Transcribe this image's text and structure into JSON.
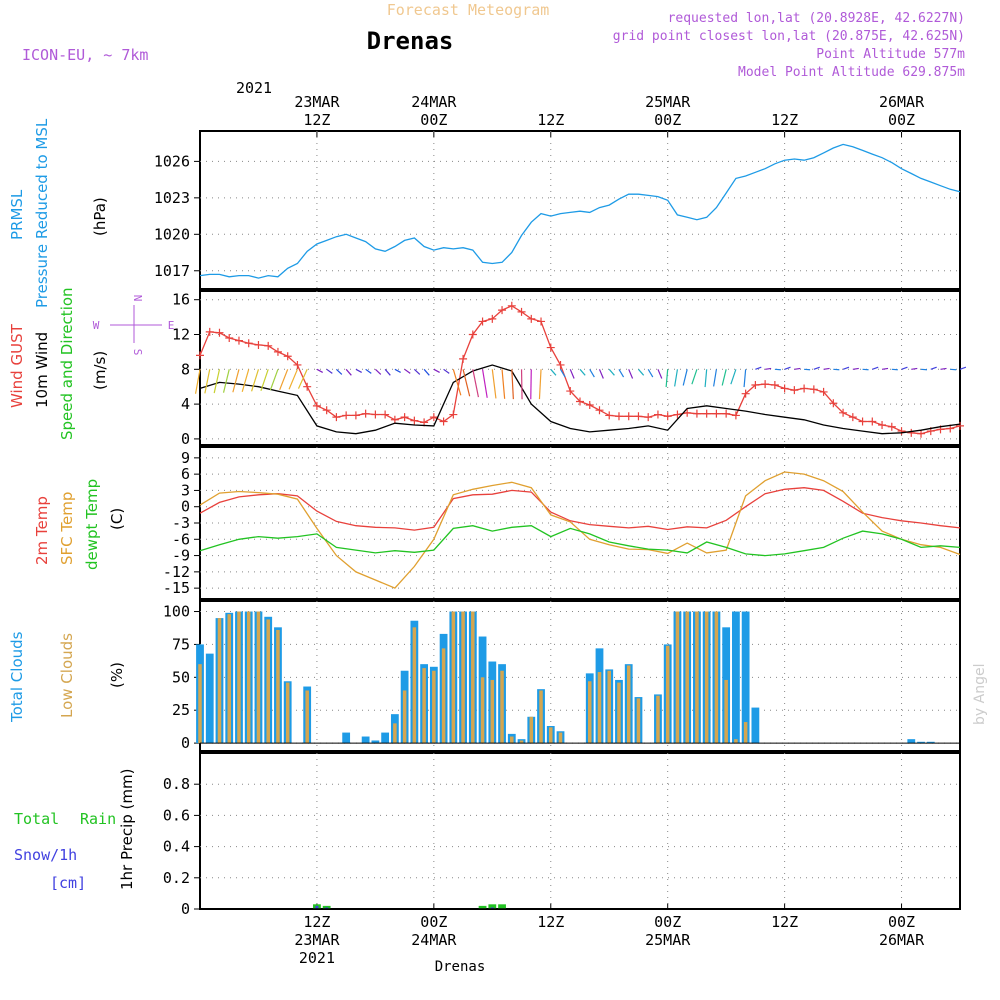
{
  "header": {
    "supertitle": "Forecast Meteogram",
    "location": "Drenas",
    "model": "ICON-EU, ~ 7km",
    "requested": "requested lon,lat (20.8928E, 42.6227N)",
    "gridpoint": "grid point closest lon,lat (20.875E, 42.625N)",
    "altitude": "Point Altitude 577m",
    "model_altitude": "Model Point Altitude 629.875m"
  },
  "footer": {
    "location": "Drenas",
    "credit": "by Angel"
  },
  "time_axis": {
    "top_year": "2021",
    "ticks": [
      {
        "h": 12,
        "top": [
          "23MAR",
          "12Z"
        ],
        "bottom": [
          "12Z",
          "23MAR",
          "2021"
        ]
      },
      {
        "h": 24,
        "top": [
          "24MAR",
          "00Z"
        ],
        "bottom": [
          "00Z",
          "24MAR"
        ]
      },
      {
        "h": 36,
        "top": [
          "12Z"
        ],
        "bottom": [
          "12Z"
        ]
      },
      {
        "h": 48,
        "top": [
          "25MAR",
          "00Z"
        ],
        "bottom": [
          "00Z",
          "25MAR"
        ]
      },
      {
        "h": 60,
        "top": [
          "12Z"
        ],
        "bottom": [
          "12Z"
        ]
      },
      {
        "h": 72,
        "top": [
          "26MAR",
          "00Z"
        ],
        "bottom": [
          "00Z",
          "26MAR"
        ]
      }
    ]
  },
  "panels": {
    "pressure": {
      "label1": "PRMSL",
      "label2": "Pressure Reduced to MSL",
      "unit": "(hPa)",
      "yticks": [
        1017,
        1020,
        1023,
        1026
      ]
    },
    "wind": {
      "label_gust": "Wind GUST",
      "label_wind": "10m Wind",
      "label_dir": "Speed and Direction",
      "unit": "(m/s)",
      "compass_n": "N",
      "compass_s": "S",
      "compass_w": "W",
      "compass_e": "E",
      "yticks": [
        0,
        4,
        8,
        12,
        16
      ]
    },
    "temp": {
      "label_2m": "2m Temp",
      "label_sfc": "SFC Temp",
      "label_dew": "dewpt Temp",
      "unit": "(C)",
      "yticks": [
        -15,
        -12,
        -9,
        -6,
        -3,
        0,
        3,
        6,
        9
      ]
    },
    "clouds": {
      "label_total": "Total Clouds",
      "label_low": "Low Clouds",
      "unit": "(%)",
      "yticks": [
        0,
        25,
        50,
        75,
        100
      ]
    },
    "precip": {
      "label_rain1": "Total",
      "label_rain2": "Rain",
      "label_snow": "Snow/1h",
      "label_cm": "[cm]",
      "unit": "1hr Precip (mm)",
      "yticks": [
        "0",
        "0.2",
        "0.4",
        "0.6",
        "0.8"
      ]
    }
  },
  "colors": {
    "pressure": "#1e9be6",
    "gust": "#e8413c",
    "wind": "#000000",
    "t2m": "#e8413c",
    "sfc": "#e0a030",
    "dew": "#22c322",
    "total_cloud": "#1e9be6",
    "low_cloud": "#d4a650",
    "rain": "#22c322",
    "snow": "#4040e0",
    "title": "#f0c890",
    "meta": "#b05ad8",
    "grid": "#888888"
  },
  "chart_data": {
    "type": "line",
    "x_unit": "hours since 2021-03-23 00Z",
    "x_range": [
      0,
      78
    ],
    "pressure": {
      "x": [
        0,
        1,
        2,
        3,
        4,
        5,
        6,
        7,
        8,
        9,
        10,
        11,
        12,
        13,
        14,
        15,
        16,
        17,
        18,
        19,
        20,
        21,
        22,
        23,
        24,
        25,
        26,
        27,
        28,
        29,
        30,
        31,
        32,
        33,
        34,
        35,
        36,
        37,
        38,
        39,
        40,
        41,
        42,
        43,
        44,
        45,
        46,
        47,
        48,
        49,
        50,
        51,
        52,
        53,
        54,
        55,
        56,
        57,
        58,
        59,
        60,
        61,
        62,
        63,
        64,
        65,
        66,
        67,
        68,
        69,
        70,
        71,
        72,
        73,
        74,
        75,
        76,
        77,
        78
      ],
      "y": [
        1016.6,
        1016.7,
        1016.7,
        1016.5,
        1016.6,
        1016.6,
        1016.4,
        1016.6,
        1016.5,
        1017.2,
        1017.6,
        1018.6,
        1019.2,
        1019.5,
        1019.8,
        1020.0,
        1019.7,
        1019.4,
        1018.8,
        1018.6,
        1019.0,
        1019.5,
        1019.7,
        1019.0,
        1018.7,
        1018.9,
        1018.8,
        1018.9,
        1018.7,
        1017.7,
        1017.6,
        1017.7,
        1018.5,
        1019.9,
        1021.0,
        1021.7,
        1021.5,
        1021.7,
        1021.8,
        1021.9,
        1021.8,
        1022.2,
        1022.4,
        1022.9,
        1023.3,
        1023.3,
        1023.2,
        1023.1,
        1022.8,
        1021.6,
        1021.4,
        1021.2,
        1021.4,
        1022.2,
        1023.4,
        1024.6,
        1024.8,
        1025.1,
        1025.4,
        1025.8,
        1026.1,
        1026.2,
        1026.1,
        1026.3,
        1026.7,
        1027.1,
        1027.4,
        1027.2,
        1026.9,
        1026.6,
        1026.3,
        1025.9,
        1025.4,
        1025.0,
        1024.6,
        1024.3,
        1024.0,
        1023.7,
        1023.5
      ]
    },
    "wind_gust": {
      "x": [
        0,
        1,
        2,
        3,
        4,
        5,
        6,
        7,
        8,
        9,
        10,
        11,
        12,
        13,
        14,
        15,
        16,
        17,
        18,
        19,
        20,
        21,
        22,
        23,
        24,
        25,
        26,
        27,
        28,
        29,
        30,
        31,
        32,
        33,
        34,
        35,
        36,
        37,
        38,
        39,
        40,
        41,
        42,
        43,
        44,
        45,
        46,
        47,
        48,
        49,
        50,
        51,
        52,
        53,
        54,
        55,
        56,
        57,
        58,
        59,
        60,
        61,
        62,
        63,
        64,
        65,
        66,
        67,
        68,
        69,
        70,
        71,
        72,
        73,
        74,
        75,
        76,
        77,
        78
      ],
      "y": [
        9.6,
        12.3,
        12.2,
        11.6,
        11.3,
        11.0,
        10.8,
        10.7,
        10.0,
        9.5,
        8.5,
        6.0,
        3.8,
        3.3,
        2.5,
        2.7,
        2.7,
        2.9,
        2.8,
        2.8,
        2.2,
        2.5,
        2.1,
        1.9,
        2.5,
        2.0,
        2.8,
        9.2,
        12.0,
        13.5,
        13.8,
        14.8,
        15.3,
        14.6,
        13.8,
        13.5,
        10.5,
        8.5,
        5.5,
        4.3,
        3.9,
        3.3,
        2.7,
        2.6,
        2.6,
        2.6,
        2.5,
        2.8,
        2.6,
        2.8,
        3.0,
        2.9,
        2.9,
        2.9,
        2.9,
        2.7,
        5.2,
        6.2,
        6.3,
        6.2,
        5.8,
        5.6,
        5.8,
        5.7,
        5.4,
        4.1,
        3.0,
        2.5,
        2.0,
        2.0,
        1.6,
        1.4,
        0.9,
        0.7,
        0.6,
        0.9,
        1.1,
        1.2,
        1.5
      ]
    },
    "wind_speed": {
      "x": [
        0,
        2,
        4,
        6,
        8,
        10,
        12,
        14,
        16,
        18,
        20,
        22,
        24,
        26,
        28,
        30,
        32,
        34,
        36,
        38,
        40,
        42,
        44,
        46,
        48,
        50,
        52,
        54,
        56,
        58,
        60,
        62,
        64,
        66,
        68,
        70,
        72,
        74,
        76,
        78
      ],
      "y": [
        5.8,
        6.5,
        6.3,
        6.0,
        5.5,
        5.0,
        1.5,
        0.8,
        0.6,
        1.0,
        1.8,
        1.6,
        1.5,
        6.5,
        7.8,
        8.5,
        7.8,
        4.0,
        2.0,
        1.2,
        0.8,
        1.0,
        1.2,
        1.5,
        1.0,
        3.5,
        3.8,
        3.5,
        3.2,
        2.8,
        2.5,
        2.2,
        1.6,
        1.2,
        0.9,
        0.6,
        0.7,
        1.0,
        1.4,
        1.7
      ]
    },
    "t2m": {
      "x": [
        0,
        2,
        4,
        6,
        8,
        10,
        12,
        14,
        16,
        18,
        20,
        22,
        24,
        26,
        28,
        30,
        32,
        34,
        36,
        38,
        40,
        42,
        44,
        46,
        48,
        50,
        52,
        54,
        56,
        58,
        60,
        62,
        64,
        66,
        68,
        70,
        72,
        74,
        76,
        78
      ],
      "y": [
        -1.2,
        0.8,
        1.8,
        2.2,
        2.4,
        2.0,
        -0.8,
        -2.7,
        -3.5,
        -3.8,
        -3.9,
        -4.3,
        -3.8,
        1.5,
        2.2,
        2.3,
        3.0,
        2.7,
        -1.0,
        -2.6,
        -3.3,
        -3.6,
        -3.9,
        -3.6,
        -4.2,
        -3.7,
        -3.9,
        -2.5,
        0.0,
        2.4,
        3.2,
        3.5,
        3.0,
        1.0,
        -1.2,
        -2.0,
        -2.6,
        -3.0,
        -3.5,
        -3.9
      ]
    },
    "t_sfc": {
      "x": [
        0,
        2,
        4,
        6,
        8,
        10,
        12,
        14,
        16,
        18,
        20,
        22,
        24,
        26,
        28,
        30,
        32,
        34,
        36,
        38,
        40,
        42,
        44,
        46,
        48,
        50,
        52,
        54,
        56,
        58,
        60,
        62,
        64,
        66,
        68,
        70,
        72,
        74,
        76,
        78
      ],
      "y": [
        0.3,
        2.5,
        2.8,
        2.6,
        2.3,
        1.4,
        -4.0,
        -9.0,
        -12.0,
        -13.5,
        -15.0,
        -11.0,
        -6.0,
        2.2,
        3.2,
        3.9,
        4.5,
        3.5,
        -1.5,
        -2.8,
        -6.0,
        -7.0,
        -7.8,
        -7.9,
        -8.6,
        -6.7,
        -8.5,
        -8.0,
        2.0,
        4.8,
        6.4,
        6.0,
        4.8,
        2.8,
        -1.0,
        -4.5,
        -6.0,
        -7.0,
        -7.5,
        -8.8
      ]
    },
    "dewpt": {
      "x": [
        0,
        2,
        4,
        6,
        8,
        10,
        12,
        14,
        16,
        18,
        20,
        22,
        24,
        26,
        28,
        30,
        32,
        34,
        36,
        38,
        40,
        42,
        44,
        46,
        48,
        50,
        52,
        54,
        56,
        58,
        60,
        62,
        64,
        66,
        68,
        70,
        72,
        74,
        76,
        78
      ],
      "y": [
        -8.1,
        -7.0,
        -6.0,
        -5.5,
        -5.8,
        -5.5,
        -5.0,
        -7.5,
        -8.0,
        -8.5,
        -8.1,
        -8.4,
        -8.0,
        -4.0,
        -3.5,
        -4.5,
        -3.8,
        -3.5,
        -5.5,
        -4.0,
        -5.0,
        -6.5,
        -7.2,
        -7.8,
        -8.0,
        -8.5,
        -6.5,
        -7.5,
        -8.7,
        -9.0,
        -8.7,
        -8.1,
        -7.5,
        -5.8,
        -4.5,
        -5.0,
        -6.0,
        -7.5,
        -7.2,
        -7.5
      ]
    },
    "total_clouds": {
      "x": [
        0,
        1,
        2,
        3,
        4,
        5,
        6,
        7,
        8,
        9,
        10,
        11,
        12,
        13,
        14,
        15,
        16,
        17,
        18,
        19,
        20,
        21,
        22,
        23,
        24,
        25,
        26,
        27,
        28,
        29,
        30,
        31,
        32,
        33,
        34,
        35,
        36,
        37,
        38,
        39,
        40,
        41,
        42,
        43,
        44,
        45,
        46,
        47,
        48,
        49,
        50,
        51,
        52,
        53,
        54,
        55,
        56,
        57,
        58,
        59,
        60,
        61,
        62,
        63,
        64,
        65,
        66,
        67,
        68,
        69,
        70,
        71,
        72,
        73,
        74,
        75,
        76,
        77,
        78
      ],
      "y": [
        75,
        68,
        95,
        99,
        100,
        100,
        100,
        96,
        88,
        47,
        0,
        43,
        0,
        0,
        0,
        8,
        0,
        5,
        2,
        8,
        22,
        55,
        93,
        60,
        58,
        83,
        100,
        100,
        100,
        81,
        62,
        60,
        7,
        3,
        20,
        41,
        13,
        9,
        0,
        0,
        53,
        72,
        56,
        48,
        60,
        35,
        0,
        37,
        75,
        100,
        100,
        100,
        100,
        100,
        88,
        100,
        100,
        27,
        0,
        0,
        0,
        0,
        0,
        0,
        0,
        0,
        0,
        0,
        0,
        0,
        0,
        0,
        0,
        3,
        1,
        1,
        0,
        0,
        0
      ]
    },
    "low_clouds": {
      "x": [
        0,
        1,
        2,
        3,
        4,
        5,
        6,
        7,
        8,
        9,
        10,
        11,
        12,
        13,
        14,
        15,
        16,
        17,
        18,
        19,
        20,
        21,
        22,
        23,
        24,
        25,
        26,
        27,
        28,
        29,
        30,
        31,
        32,
        33,
        34,
        35,
        36,
        37,
        38,
        39,
        40,
        41,
        42,
        43,
        44,
        45,
        46,
        47,
        48,
        49,
        50,
        51,
        52,
        53,
        54,
        55,
        56,
        57,
        58,
        59,
        60,
        61,
        62,
        63,
        64,
        65,
        66,
        67,
        68,
        69,
        70,
        71,
        72,
        73,
        74,
        75,
        76,
        77,
        78
      ],
      "y": [
        60,
        0,
        95,
        98,
        100,
        100,
        100,
        94,
        86,
        46,
        0,
        40,
        0,
        0,
        0,
        0,
        0,
        0,
        0,
        0,
        15,
        40,
        88,
        57,
        55,
        72,
        100,
        100,
        100,
        50,
        48,
        55,
        5,
        2,
        20,
        40,
        12,
        8,
        0,
        0,
        47,
        54,
        55,
        46,
        59,
        34,
        0,
        36,
        74,
        100,
        100,
        100,
        100,
        100,
        48,
        3,
        16,
        0,
        0,
        0,
        0,
        0,
        0,
        0,
        0,
        0,
        0,
        0,
        0,
        0,
        0,
        0,
        0,
        0,
        0,
        0,
        0,
        0,
        0
      ]
    },
    "rain": {
      "x": [
        12,
        13,
        29,
        30,
        31
      ],
      "y": [
        0.03,
        0.02,
        0.02,
        0.03,
        0.03
      ]
    },
    "snow": {
      "x": [
        12,
        13,
        30
      ],
      "y": [
        0.02,
        0.01,
        0.01
      ]
    }
  }
}
